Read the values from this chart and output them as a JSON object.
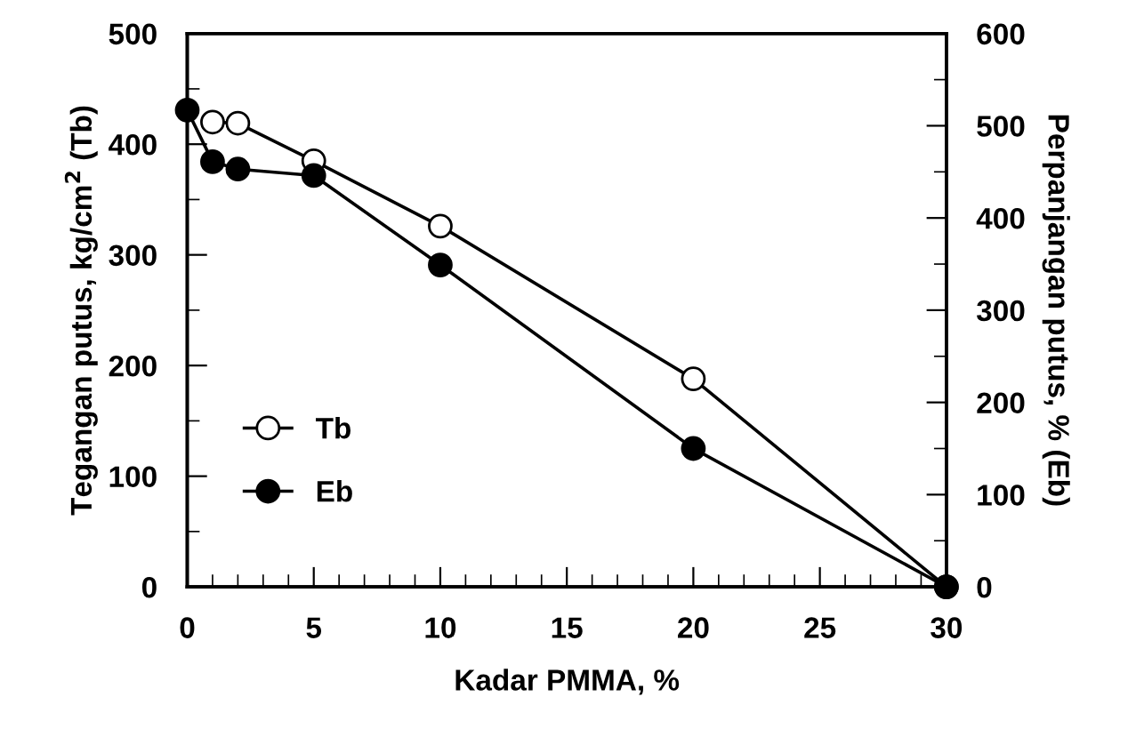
{
  "chart_data": {
    "type": "line",
    "xlabel": "Kadar PMMA, %",
    "ylabel": "Tegangan putus, kg/cm$^{2}$ (Tb)",
    "y2label": "Perpanjangan putus, % (Eb)",
    "series": [
      {
        "name": "Tb",
        "color": "#000000",
        "marker": "circle",
        "x": [
          1,
          2,
          5,
          10,
          20,
          30
        ],
        "values": [
          420,
          419,
          385,
          326,
          188,
          0
        ]
      },
      {
        "name": "Eb",
        "color": "#000000",
        "marker": "circle",
        "axis": "y2",
        "x": [
          0,
          1,
          2,
          5,
          10,
          20,
          30
        ],
        "values": [
          517,
          461,
          453,
          446,
          349,
          150,
          0
        ]
      }
    ],
    "xlim": [
      0,
      30
    ],
    "xticks": [
      0,
      {
        "value": 1,
        "label": null
      },
      {
        "value": 2,
        "label": null
      },
      {
        "value": 3,
        "label": null
      },
      {
        "value": 4,
        "label": null
      },
      5,
      {
        "value": 6,
        "label": null
      },
      {
        "value": 7,
        "label": null
      },
      {
        "value": 8,
        "label": null
      },
      {
        "value": 9,
        "label": null
      },
      10,
      {
        "value": 11,
        "label": null
      },
      {
        "value": 12,
        "label": null
      },
      {
        "value": 13,
        "label": null
      },
      {
        "value": 14,
        "label": null
      },
      15,
      {
        "value": 16,
        "label": null
      },
      {
        "value": 17,
        "label": null
      },
      {
        "value": 18,
        "label": null
      },
      {
        "value": 19,
        "label": null
      },
      20,
      {
        "value": 21,
        "label": null
      },
      {
        "value": 22,
        "label": null
      },
      {
        "value": 23,
        "label": null
      },
      {
        "value": 24,
        "label": null
      },
      25,
      {
        "value": 26,
        "label": null
      },
      {
        "value": 27,
        "label": null
      },
      {
        "value": 28,
        "label": null
      },
      {
        "value": 29,
        "label": null
      },
      30
    ],
    "ylim": [
      0,
      500
    ],
    "yticks": [
      0,
      {
        "value": 50,
        "label": null
      },
      100,
      {
        "value": 150,
        "label": null
      },
      200,
      {
        "value": 250,
        "label": null
      },
      300,
      {
        "value": 350,
        "label": null
      },
      400,
      {
        "value": 450,
        "label": null
      },
      500
    ],
    "y2lim": [
      0,
      600
    ],
    "y2ticks": [
      0,
      {
        "value": 50,
        "label": null
      },
      100,
      {
        "value": 150,
        "label": null
      },
      200,
      {
        "value": 250,
        "label": null
      },
      300,
      {
        "value": 350,
        "label": null
      },
      400,
      {
        "value": 450,
        "label": null
      },
      500,
      {
        "value": 550,
        "label": null
      },
      600
    ],
    "legend": "left",
    "grid": false,
    "line_style": "solid"
  }
}
